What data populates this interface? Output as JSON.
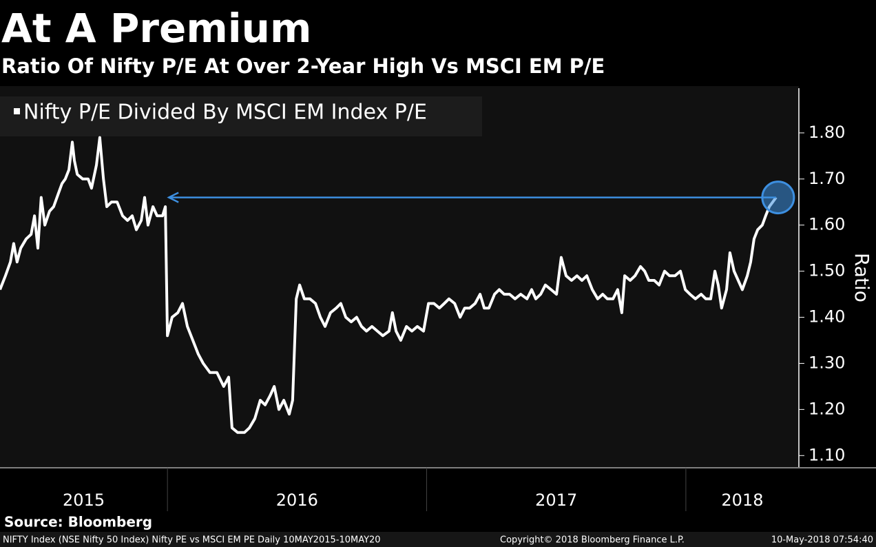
{
  "chart_data": {
    "type": "line",
    "title": "At A Premium",
    "subtitle": "Ratio Of Nifty P/E At Over 2-Year High Vs MSCI EM P/E",
    "y_label": "Ratio",
    "source": "Source: Bloomberg",
    "footer_left": "NIFTY Index (NSE Nifty 50 Index) Nifty PE vs MSCI EM PE  Daily 10MAY2015-10MAY20",
    "footer_center": "Copyright© 2018 Bloomberg Finance L.P.",
    "footer_right": "10-May-2018 07:54:40",
    "year_labels": [
      "2015",
      "2016",
      "2017",
      "2018"
    ],
    "xlim": [
      2015.354,
      2018.436
    ],
    "xticks": [
      2016,
      2017,
      2018
    ],
    "ylim": [
      1.075,
      1.897
    ],
    "yticks": [
      {
        "value": 1.1,
        "label": "1.10"
      },
      {
        "value": 1.2,
        "label": "1.20"
      },
      {
        "value": 1.3,
        "label": "1.30"
      },
      {
        "value": 1.4,
        "label": "1.40"
      },
      {
        "value": 1.5,
        "label": "1.50"
      },
      {
        "value": 1.6,
        "label": "1.60"
      },
      {
        "value": 1.7,
        "label": "1.70"
      },
      {
        "value": 1.8,
        "label": "1.80"
      }
    ],
    "annotation_color": "#3d8fe0",
    "x": [
      2015.354,
      2015.375,
      2015.394,
      2015.407,
      2015.42,
      2015.434,
      2015.455,
      2015.474,
      2015.487,
      2015.5,
      2015.513,
      2015.527,
      2015.545,
      2015.561,
      2015.58,
      2015.593,
      2015.606,
      2015.62,
      2015.633,
      2015.641,
      2015.652,
      2015.673,
      2015.694,
      2015.707,
      2015.726,
      2015.739,
      2015.753,
      2015.766,
      2015.784,
      2015.806,
      2015.827,
      2015.846,
      2015.864,
      2015.88,
      2015.899,
      2015.912,
      2015.925,
      2015.944,
      2015.96,
      2015.981,
      2015.992,
      2016.0,
      2016.018,
      2016.04,
      2016.058,
      2016.077,
      2016.098,
      2016.119,
      2016.138,
      2016.164,
      2016.191,
      2016.217,
      2016.236,
      2016.249,
      2016.271,
      2016.297,
      2016.316,
      2016.337,
      2016.358,
      2016.377,
      2016.396,
      2016.412,
      2016.43,
      2016.449,
      2016.47,
      2016.483,
      2016.497,
      2016.51,
      2016.528,
      2016.55,
      2016.571,
      2016.59,
      2016.608,
      2016.629,
      2016.651,
      2016.669,
      2016.688,
      2016.709,
      2016.73,
      2016.749,
      2016.768,
      2016.789,
      2016.81,
      2016.831,
      2016.855,
      2016.868,
      2016.882,
      2016.9,
      2016.922,
      2016.943,
      2016.964,
      2016.988,
      2017.007,
      2017.028,
      2017.049,
      2017.068,
      2017.086,
      2017.108,
      2017.129,
      2017.147,
      2017.166,
      2017.187,
      2017.206,
      2017.222,
      2017.24,
      2017.262,
      2017.28,
      2017.299,
      2017.32,
      2017.341,
      2017.363,
      2017.387,
      2017.405,
      2017.421,
      2017.44,
      2017.458,
      2017.48,
      2017.501,
      2017.519,
      2017.538,
      2017.559,
      2017.58,
      2017.599,
      2017.618,
      2017.639,
      2017.66,
      2017.679,
      2017.697,
      2017.719,
      2017.737,
      2017.753,
      2017.764,
      2017.785,
      2017.804,
      2017.825,
      2017.841,
      2017.857,
      2017.878,
      2017.897,
      2017.918,
      2017.937,
      2017.958,
      2017.979,
      2017.998,
      2018.016,
      2018.037,
      2018.059,
      2018.077,
      2018.096,
      2018.112,
      2018.125,
      2018.138,
      2018.157,
      2018.17,
      2018.186,
      2018.202,
      2018.218,
      2018.237,
      2018.25,
      2018.263,
      2018.277,
      2018.295,
      2018.308,
      2018.322,
      2018.335,
      2018.348
    ],
    "series": [
      {
        "name": "Nifty P/E Divided By MSCI EM Index P/E",
        "color": "#ffffff",
        "values": [
          1.46,
          1.49,
          1.52,
          1.56,
          1.52,
          1.55,
          1.57,
          1.58,
          1.62,
          1.55,
          1.66,
          1.6,
          1.63,
          1.64,
          1.67,
          1.69,
          1.7,
          1.72,
          1.78,
          1.74,
          1.71,
          1.7,
          1.7,
          1.68,
          1.73,
          1.79,
          1.7,
          1.64,
          1.65,
          1.65,
          1.62,
          1.61,
          1.62,
          1.59,
          1.61,
          1.66,
          1.6,
          1.64,
          1.62,
          1.62,
          1.64,
          1.36,
          1.4,
          1.41,
          1.43,
          1.38,
          1.35,
          1.32,
          1.3,
          1.28,
          1.28,
          1.25,
          1.27,
          1.16,
          1.15,
          1.15,
          1.16,
          1.18,
          1.22,
          1.21,
          1.23,
          1.25,
          1.2,
          1.22,
          1.19,
          1.22,
          1.44,
          1.47,
          1.44,
          1.44,
          1.43,
          1.4,
          1.38,
          1.41,
          1.42,
          1.43,
          1.4,
          1.39,
          1.4,
          1.38,
          1.37,
          1.38,
          1.37,
          1.36,
          1.37,
          1.41,
          1.37,
          1.35,
          1.38,
          1.37,
          1.38,
          1.37,
          1.43,
          1.43,
          1.42,
          1.43,
          1.44,
          1.43,
          1.4,
          1.42,
          1.42,
          1.43,
          1.45,
          1.42,
          1.42,
          1.45,
          1.46,
          1.45,
          1.45,
          1.44,
          1.45,
          1.44,
          1.46,
          1.44,
          1.45,
          1.47,
          1.46,
          1.45,
          1.53,
          1.49,
          1.48,
          1.49,
          1.48,
          1.49,
          1.46,
          1.44,
          1.45,
          1.44,
          1.44,
          1.46,
          1.41,
          1.49,
          1.48,
          1.49,
          1.51,
          1.5,
          1.48,
          1.48,
          1.47,
          1.5,
          1.49,
          1.49,
          1.5,
          1.46,
          1.45,
          1.44,
          1.45,
          1.44,
          1.44,
          1.5,
          1.47,
          1.42,
          1.46,
          1.54,
          1.5,
          1.48,
          1.46,
          1.49,
          1.52,
          1.57,
          1.59,
          1.6,
          1.62,
          1.64,
          1.65,
          1.66
        ]
      }
    ]
  }
}
